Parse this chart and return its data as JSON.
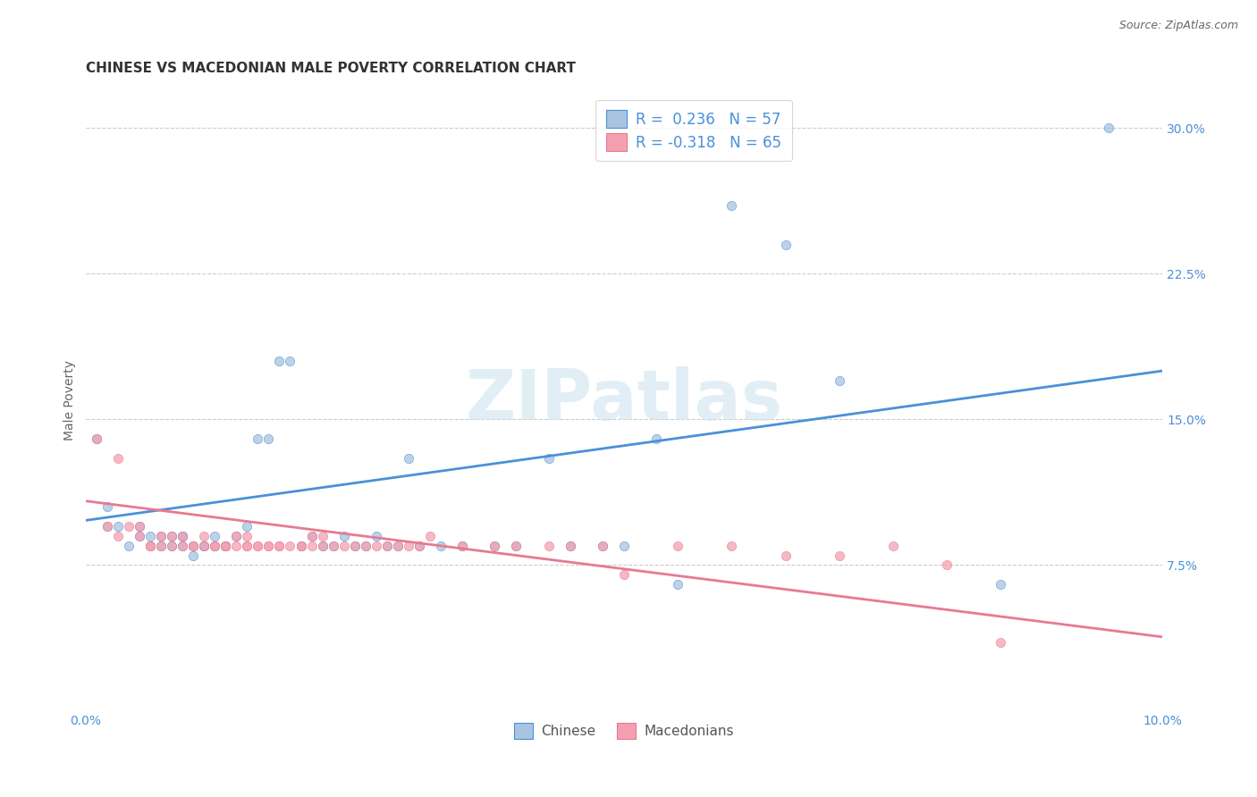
{
  "title": "CHINESE VS MACEDONIAN MALE POVERTY CORRELATION CHART",
  "source": "Source: ZipAtlas.com",
  "ylabel": "Male Poverty",
  "watermark": "ZIPatlas",
  "xlim": [
    0.0,
    0.1
  ],
  "ylim": [
    0.0,
    0.32
  ],
  "xtick_vals": [
    0.0,
    0.025,
    0.05,
    0.075,
    0.1
  ],
  "xticklabels": [
    "0.0%",
    "",
    "",
    "",
    "10.0%"
  ],
  "ytick_vals": [
    0.0,
    0.075,
    0.15,
    0.225,
    0.3
  ],
  "yticklabels_right": [
    "",
    "7.5%",
    "15.0%",
    "22.5%",
    "30.0%"
  ],
  "grid_color": "#cccccc",
  "background_color": "#ffffff",
  "chinese_color": "#a8c4e0",
  "macedonian_color": "#f4a0b0",
  "chinese_line_color": "#4a90d9",
  "macedonian_line_color": "#e87a90",
  "text_color": "#4a90d9",
  "chinese_R": 0.236,
  "chinese_N": 57,
  "macedonian_R": -0.318,
  "macedonian_N": 65,
  "legend_label_chinese": "Chinese",
  "legend_label_macedonian": "Macedonians",
  "chinese_line_x0": 0.0,
  "chinese_line_y0": 0.098,
  "chinese_line_x1": 0.1,
  "chinese_line_y1": 0.175,
  "macedonian_line_x0": 0.0,
  "macedonian_line_y0": 0.108,
  "macedonian_line_x1": 0.1,
  "macedonian_line_y1": 0.038,
  "chinese_x": [
    0.001,
    0.002,
    0.002,
    0.003,
    0.004,
    0.005,
    0.005,
    0.006,
    0.006,
    0.007,
    0.007,
    0.008,
    0.008,
    0.009,
    0.009,
    0.009,
    0.01,
    0.01,
    0.011,
    0.011,
    0.012,
    0.012,
    0.013,
    0.013,
    0.014,
    0.015,
    0.016,
    0.017,
    0.018,
    0.019,
    0.02,
    0.021,
    0.022,
    0.023,
    0.024,
    0.025,
    0.026,
    0.027,
    0.028,
    0.029,
    0.03,
    0.031,
    0.033,
    0.035,
    0.038,
    0.04,
    0.043,
    0.045,
    0.048,
    0.05,
    0.053,
    0.055,
    0.06,
    0.065,
    0.07,
    0.085,
    0.095
  ],
  "chinese_y": [
    0.14,
    0.105,
    0.095,
    0.095,
    0.085,
    0.095,
    0.09,
    0.085,
    0.09,
    0.09,
    0.085,
    0.085,
    0.09,
    0.09,
    0.085,
    0.09,
    0.085,
    0.08,
    0.085,
    0.085,
    0.085,
    0.09,
    0.085,
    0.085,
    0.09,
    0.095,
    0.14,
    0.14,
    0.18,
    0.18,
    0.085,
    0.09,
    0.085,
    0.085,
    0.09,
    0.085,
    0.085,
    0.09,
    0.085,
    0.085,
    0.13,
    0.085,
    0.085,
    0.085,
    0.085,
    0.085,
    0.13,
    0.085,
    0.085,
    0.085,
    0.14,
    0.065,
    0.26,
    0.24,
    0.17,
    0.065,
    0.3
  ],
  "macedonian_x": [
    0.001,
    0.002,
    0.003,
    0.003,
    0.004,
    0.005,
    0.005,
    0.006,
    0.006,
    0.007,
    0.007,
    0.008,
    0.008,
    0.009,
    0.009,
    0.01,
    0.01,
    0.011,
    0.011,
    0.012,
    0.012,
    0.013,
    0.013,
    0.014,
    0.014,
    0.015,
    0.015,
    0.015,
    0.016,
    0.016,
    0.017,
    0.017,
    0.018,
    0.018,
    0.019,
    0.02,
    0.02,
    0.021,
    0.021,
    0.022,
    0.022,
    0.023,
    0.024,
    0.025,
    0.026,
    0.027,
    0.028,
    0.029,
    0.03,
    0.031,
    0.032,
    0.035,
    0.038,
    0.04,
    0.043,
    0.045,
    0.048,
    0.05,
    0.055,
    0.06,
    0.065,
    0.07,
    0.075,
    0.08,
    0.085
  ],
  "macedonian_y": [
    0.14,
    0.095,
    0.13,
    0.09,
    0.095,
    0.09,
    0.095,
    0.085,
    0.085,
    0.09,
    0.085,
    0.085,
    0.09,
    0.085,
    0.09,
    0.085,
    0.085,
    0.085,
    0.09,
    0.085,
    0.085,
    0.085,
    0.085,
    0.09,
    0.085,
    0.085,
    0.085,
    0.09,
    0.085,
    0.085,
    0.085,
    0.085,
    0.085,
    0.085,
    0.085,
    0.085,
    0.085,
    0.085,
    0.09,
    0.085,
    0.09,
    0.085,
    0.085,
    0.085,
    0.085,
    0.085,
    0.085,
    0.085,
    0.085,
    0.085,
    0.09,
    0.085,
    0.085,
    0.085,
    0.085,
    0.085,
    0.085,
    0.07,
    0.085,
    0.085,
    0.08,
    0.08,
    0.085,
    0.075,
    0.035
  ],
  "title_fontsize": 11,
  "axis_label_fontsize": 10,
  "tick_fontsize": 10,
  "scatter_size": 55,
  "scatter_alpha": 0.75,
  "line_width": 2.0
}
